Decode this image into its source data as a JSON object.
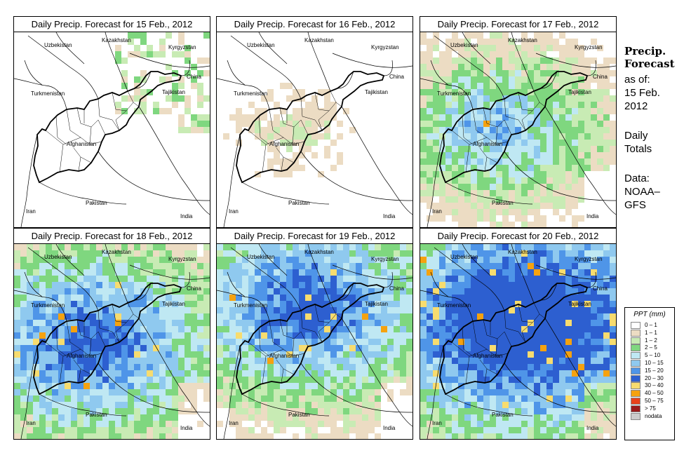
{
  "panels": [
    {
      "title": "Daily Precip. Forecast for  15 Feb., 2012",
      "intensity": 0
    },
    {
      "title": "Daily Precip. Forecast for  16 Feb., 2012",
      "intensity": 1
    },
    {
      "title": "Daily Precip. Forecast for  17 Feb., 2012",
      "intensity": 3
    },
    {
      "title": "Daily Precip. Forecast for  18 Feb., 2012",
      "intensity": 4
    },
    {
      "title": "Daily Precip. Forecast for  19 Feb., 2012",
      "intensity": 4
    },
    {
      "title": "Daily Precip. Forecast for  20 Feb., 2012",
      "intensity": 5
    }
  ],
  "map_labels": {
    "kazakhstan": "Kazakhstan",
    "uzbekistan": "Uzbekistan",
    "kyrgyzstan": "Kyrgyzstan",
    "china": "China",
    "tajikistan": "Tajikistan",
    "turkmenistan": "Turkmenistan",
    "afghanistan": "Afghanistan",
    "pakistan": "Pakistan",
    "iran": "Iran",
    "india": "India"
  },
  "sidebar": {
    "title_line1": "Precip.",
    "title_line2": "Forecast",
    "asof_label": "as of:",
    "date_line1": "15 Feb.",
    "date_line2": "2012",
    "totals_line1": "Daily",
    "totals_line2": "Totals",
    "data_line1": "Data:",
    "data_line2": "NOAA–",
    "data_line3": "GFS"
  },
  "legend": {
    "title": "PPT (mm)",
    "items": [
      {
        "label": "0 – 1",
        "color": "#ffffff"
      },
      {
        "label": "1 – 1",
        "color": "#ecdcc3"
      },
      {
        "label": "1 – 2",
        "color": "#c8ebb4"
      },
      {
        "label": "2 – 5",
        "color": "#7fd77f"
      },
      {
        "label": "5 – 10",
        "color": "#bfe8f3"
      },
      {
        "label": "10 – 15",
        "color": "#8fc9ef"
      },
      {
        "label": "15 – 20",
        "color": "#4f95e8"
      },
      {
        "label": "20 – 30",
        "color": "#2d5fd0"
      },
      {
        "label": "30 – 40",
        "color": "#f7dc6f"
      },
      {
        "label": "40 – 50",
        "color": "#f5a20f"
      },
      {
        "label": "50 – 75",
        "color": "#e8421a"
      },
      {
        "label": "> 75",
        "color": "#9b1b1b"
      },
      {
        "label": "nodata",
        "color": "#cccccc"
      }
    ]
  }
}
